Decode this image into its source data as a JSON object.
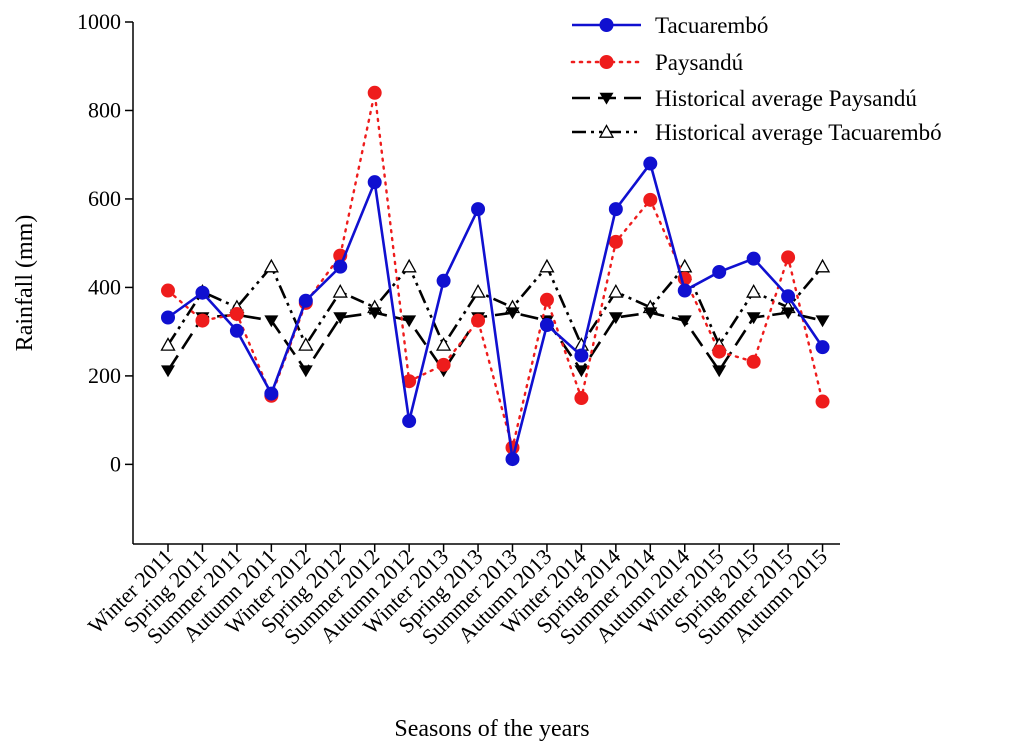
{
  "chart_data": {
    "type": "line",
    "xlabel": "Seasons of the years",
    "ylabel": "Rainfall (mm)",
    "ylim": [
      -180,
      1000
    ],
    "yticks": [
      0,
      200,
      400,
      600,
      800,
      1000
    ],
    "grid": false,
    "legend_position": "top-right",
    "categories": [
      "Winter 2011",
      "Spring 2011",
      "Summer 2011",
      "Autumn 2011",
      "Winter 2012",
      "Spring 2012",
      "Summer 2012",
      "Autumn 2012",
      "Winter 2013",
      "Spring 2013",
      "Summer 2013",
      "Autumn 2013",
      "Winter 2014",
      "Spring 2014",
      "Summer 2014",
      "Autumn 2014",
      "Winter 2015",
      "Spring 2015",
      "Summer 2015",
      "Autumn 2015"
    ],
    "series": [
      {
        "name": "Tacuarembó",
        "color": "#1010d0",
        "line_style": "solid",
        "marker": "filled-circle",
        "values": [
          332,
          388,
          302,
          160,
          370,
          447,
          638,
          98,
          415,
          577,
          12,
          315,
          246,
          577,
          680,
          393,
          435,
          465,
          380,
          265
        ]
      },
      {
        "name": "Paysandú",
        "color": "#ee1c1c",
        "line_style": "dotted",
        "marker": "filled-circle",
        "values": [
          393,
          325,
          340,
          155,
          365,
          472,
          840,
          188,
          225,
          325,
          38,
          372,
          150,
          503,
          598,
          420,
          255,
          232,
          468,
          142
        ]
      },
      {
        "name": "Historical average Paysandú",
        "color": "#000000",
        "line_style": "long-dash",
        "marker": "filled-triangle-down",
        "values": [
          212,
          332,
          338,
          325,
          212,
          332,
          343,
          325,
          212,
          332,
          343,
          325,
          212,
          332,
          343,
          325,
          212,
          332,
          343,
          325
        ]
      },
      {
        "name": "Historical average Tacuarembó",
        "color": "#000000",
        "line_style": "dash-dot-dot",
        "marker": "open-triangle-up",
        "values": [
          270,
          390,
          355,
          447,
          270,
          390,
          355,
          447,
          270,
          390,
          355,
          447,
          270,
          390,
          355,
          447,
          270,
          390,
          355,
          447
        ]
      }
    ]
  }
}
